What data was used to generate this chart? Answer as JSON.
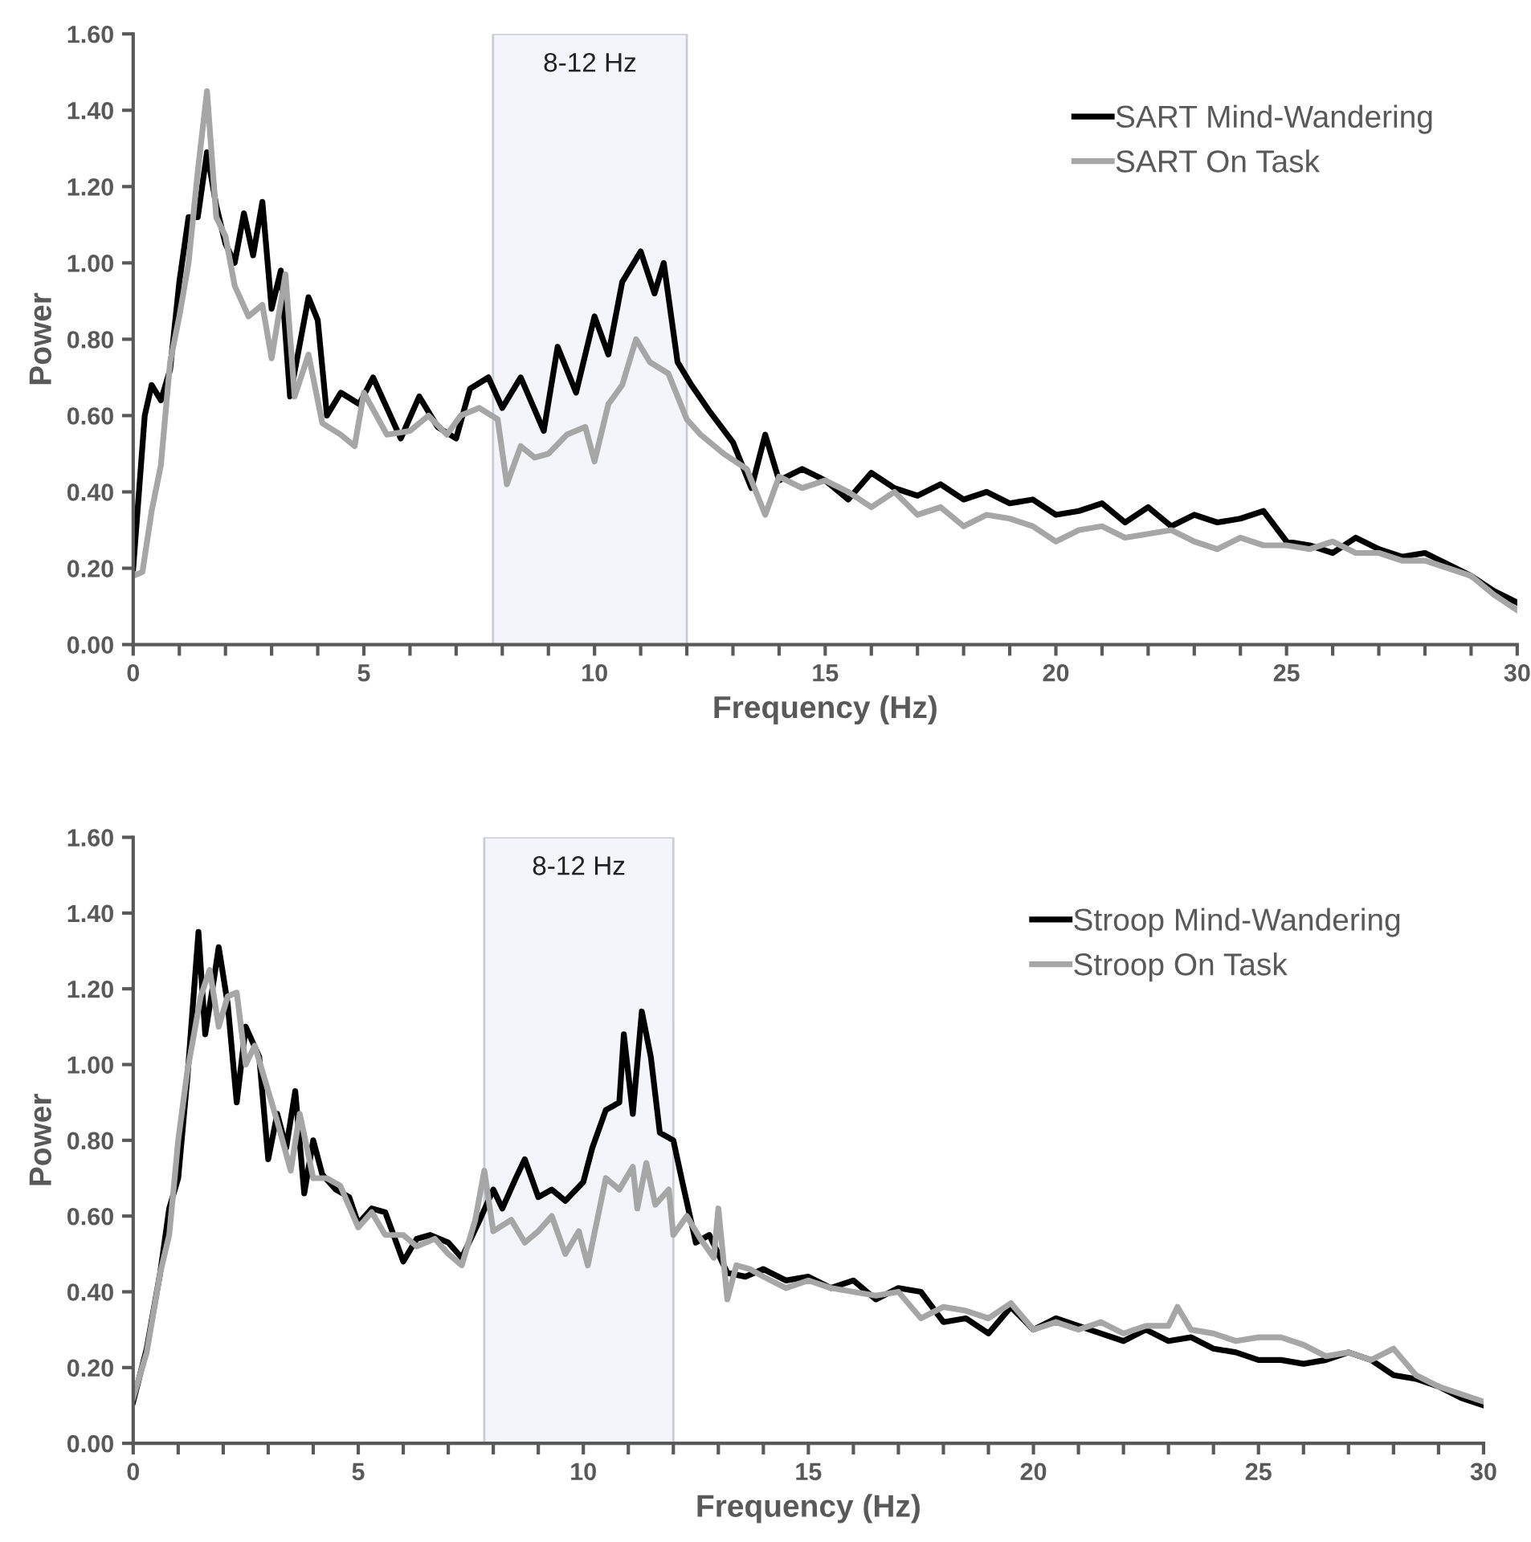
{
  "chart_data": [
    {
      "type": "line",
      "xlabel": "Frequency (Hz)",
      "ylabel": "Power",
      "xlim": [
        0,
        30
      ],
      "ylim": [
        0,
        1.6
      ],
      "xticks": [
        0,
        {
          "value": 1,
          "label": null
        },
        {
          "value": 2,
          "label": null
        },
        {
          "value": 3,
          "label": null
        },
        {
          "value": 4,
          "label": null
        },
        5,
        {
          "value": 6,
          "label": null
        },
        {
          "value": 7,
          "label": null
        },
        {
          "value": 8,
          "label": null
        },
        {
          "value": 9,
          "label": null
        },
        10,
        {
          "value": 11,
          "label": null
        },
        {
          "value": 12,
          "label": null
        },
        {
          "value": 13,
          "label": null
        },
        {
          "value": 14,
          "label": null
        },
        15,
        {
          "value": 16,
          "label": null
        },
        {
          "value": 17,
          "label": null
        },
        {
          "value": 18,
          "label": null
        },
        {
          "value": 19,
          "label": null
        },
        20,
        {
          "value": 21,
          "label": null
        },
        {
          "value": 22,
          "label": null
        },
        {
          "value": 23,
          "label": null
        },
        {
          "value": 24,
          "label": null
        },
        25,
        {
          "value": 26,
          "label": null
        },
        {
          "value": 27,
          "label": null
        },
        {
          "value": 28,
          "label": null
        },
        {
          "value": 29,
          "label": null
        },
        30
      ],
      "yticks": [
        {
          "value": 0,
          "label": "0.00"
        },
        {
          "value": 0.2,
          "label": "0.20"
        },
        {
          "value": 0.4,
          "label": "0.40"
        },
        {
          "value": 0.6,
          "label": "0.60"
        },
        {
          "value": 0.8,
          "label": "0.80"
        },
        {
          "value": 1.0,
          "label": "1.00"
        },
        {
          "value": 1.2,
          "label": "1.20"
        },
        {
          "value": 1.4,
          "label": "1.40"
        },
        {
          "value": 1.6,
          "label": "1.60"
        }
      ],
      "grid": false,
      "legend": "top right",
      "marker": "none",
      "line_style": "solid",
      "bands": [
        {
          "axis": "x",
          "from": 7.8,
          "to": 12,
          "label": "8-12 Hz",
          "color": "#f3f5fa"
        }
      ],
      "series": [
        {
          "name": "SART Mind-Wandering",
          "color": "#000000",
          "x": [
            0,
            0.25,
            0.4,
            0.6,
            0.8,
            1.0,
            1.2,
            1.4,
            1.6,
            1.8,
            2.0,
            2.2,
            2.4,
            2.6,
            2.8,
            3.0,
            3.2,
            3.4,
            3.6,
            3.8,
            4.0,
            4.2,
            4.5,
            4.9,
            5.2,
            5.5,
            5.8,
            6.2,
            6.6,
            7.0,
            7.3,
            7.7,
            8.0,
            8.4,
            8.9,
            9.2,
            9.6,
            10.0,
            10.3,
            10.6,
            11.0,
            11.3,
            11.5,
            11.8,
            12.1,
            12.5,
            13.0,
            13.4,
            13.7,
            14.0,
            14.5,
            15.0,
            15.5,
            16,
            16.5,
            17,
            17.5,
            18,
            18.5,
            19,
            19.5,
            20,
            20.5,
            21,
            21.5,
            22,
            22.5,
            23,
            23.5,
            24,
            24.5,
            25,
            25.5,
            26,
            26.5,
            27,
            27.5,
            28,
            28.5,
            29,
            29.5,
            30
          ],
          "values": [
            0.2,
            0.6,
            0.68,
            0.64,
            0.72,
            0.95,
            1.12,
            1.12,
            1.29,
            1.15,
            1.05,
            1.0,
            1.13,
            1.02,
            1.16,
            0.88,
            0.98,
            0.65,
            0.78,
            0.91,
            0.85,
            0.6,
            0.66,
            0.63,
            0.7,
            0.62,
            0.54,
            0.65,
            0.57,
            0.54,
            0.67,
            0.7,
            0.62,
            0.7,
            0.56,
            0.78,
            0.66,
            0.86,
            0.76,
            0.95,
            1.03,
            0.92,
            1.0,
            0.74,
            0.68,
            0.61,
            0.53,
            0.41,
            0.55,
            0.43,
            0.46,
            0.43,
            0.38,
            0.45,
            0.41,
            0.39,
            0.42,
            0.38,
            0.4,
            0.37,
            0.38,
            0.34,
            0.35,
            0.37,
            0.32,
            0.36,
            0.31,
            0.34,
            0.32,
            0.33,
            0.35,
            0.27,
            0.26,
            0.24,
            0.28,
            0.25,
            0.23,
            0.24,
            0.21,
            0.18,
            0.14,
            0.11
          ]
        },
        {
          "name": "SART On Task",
          "color": "#a6a6a6",
          "x": [
            0,
            0.2,
            0.4,
            0.6,
            0.8,
            1.0,
            1.2,
            1.4,
            1.6,
            1.8,
            2.0,
            2.2,
            2.5,
            2.8,
            3.0,
            3.3,
            3.5,
            3.8,
            4.1,
            4.5,
            4.8,
            5.0,
            5.5,
            6,
            6.4,
            6.8,
            7.1,
            7.5,
            7.9,
            8.1,
            8.4,
            8.7,
            9.0,
            9.4,
            9.8,
            10.0,
            10.3,
            10.6,
            10.9,
            11.2,
            11.6,
            12.0,
            12.3,
            12.8,
            13.3,
            13.7,
            14.0,
            14.5,
            15,
            15.5,
            16,
            16.5,
            17,
            17.5,
            18,
            18.5,
            19,
            19.5,
            20,
            20.5,
            21,
            21.5,
            22,
            22.5,
            23,
            23.5,
            24,
            24.5,
            25,
            25.5,
            26,
            26.5,
            27,
            27.5,
            28,
            28.5,
            29,
            29.5,
            30
          ],
          "values": [
            0.18,
            0.19,
            0.35,
            0.47,
            0.74,
            0.86,
            1.0,
            1.24,
            1.45,
            1.12,
            1.07,
            0.94,
            0.86,
            0.89,
            0.75,
            0.97,
            0.65,
            0.76,
            0.58,
            0.55,
            0.52,
            0.66,
            0.55,
            0.56,
            0.6,
            0.55,
            0.6,
            0.62,
            0.59,
            0.42,
            0.52,
            0.49,
            0.5,
            0.55,
            0.57,
            0.48,
            0.63,
            0.68,
            0.8,
            0.74,
            0.71,
            0.59,
            0.55,
            0.5,
            0.46,
            0.34,
            0.44,
            0.41,
            0.43,
            0.4,
            0.36,
            0.4,
            0.34,
            0.36,
            0.31,
            0.34,
            0.33,
            0.31,
            0.27,
            0.3,
            0.31,
            0.28,
            0.29,
            0.3,
            0.27,
            0.25,
            0.28,
            0.26,
            0.26,
            0.25,
            0.27,
            0.24,
            0.24,
            0.22,
            0.22,
            0.2,
            0.18,
            0.13,
            0.09
          ]
        }
      ]
    },
    {
      "type": "line",
      "xlabel": "Frequency (Hz)",
      "ylabel": "Power",
      "xlim": [
        0,
        30
      ],
      "ylim": [
        0,
        1.6
      ],
      "xticks": [
        0,
        {
          "value": 1,
          "label": null
        },
        {
          "value": 2,
          "label": null
        },
        {
          "value": 3,
          "label": null
        },
        {
          "value": 4,
          "label": null
        },
        5,
        {
          "value": 6,
          "label": null
        },
        {
          "value": 7,
          "label": null
        },
        {
          "value": 8,
          "label": null
        },
        {
          "value": 9,
          "label": null
        },
        10,
        {
          "value": 11,
          "label": null
        },
        {
          "value": 12,
          "label": null
        },
        {
          "value": 13,
          "label": null
        },
        {
          "value": 14,
          "label": null
        },
        15,
        {
          "value": 16,
          "label": null
        },
        {
          "value": 17,
          "label": null
        },
        {
          "value": 18,
          "label": null
        },
        {
          "value": 19,
          "label": null
        },
        20,
        {
          "value": 21,
          "label": null
        },
        {
          "value": 22,
          "label": null
        },
        {
          "value": 23,
          "label": null
        },
        {
          "value": 24,
          "label": null
        },
        25,
        {
          "value": 26,
          "label": null
        },
        {
          "value": 27,
          "label": null
        },
        {
          "value": 28,
          "label": null
        },
        {
          "value": 29,
          "label": null
        },
        30
      ],
      "yticks": [
        {
          "value": 0,
          "label": "0.00"
        },
        {
          "value": 0.2,
          "label": "0.20"
        },
        {
          "value": 0.4,
          "label": "0.40"
        },
        {
          "value": 0.6,
          "label": "0.60"
        },
        {
          "value": 0.8,
          "label": "0.80"
        },
        {
          "value": 1.0,
          "label": "1.00"
        },
        {
          "value": 1.2,
          "label": "1.20"
        },
        {
          "value": 1.4,
          "label": "1.40"
        },
        {
          "value": 1.6,
          "label": "1.60"
        }
      ],
      "grid": false,
      "legend": "top right",
      "marker": "none",
      "line_style": "solid",
      "bands": [
        {
          "axis": "x",
          "from": 7.8,
          "to": 12,
          "label": "8-12 Hz",
          "color": "#f3f5fa"
        }
      ],
      "series": [
        {
          "name": "Stroop Mind-Wandering",
          "color": "#000000",
          "x": [
            0,
            0.3,
            0.6,
            0.8,
            1.0,
            1.2,
            1.45,
            1.6,
            1.8,
            1.9,
            2.1,
            2.3,
            2.5,
            2.8,
            3.0,
            3.2,
            3.4,
            3.6,
            3.8,
            4.0,
            4.2,
            4.5,
            4.8,
            5.0,
            5.3,
            5.6,
            6.0,
            6.3,
            6.6,
            7.0,
            7.3,
            7.7,
            8.0,
            8.2,
            8.5,
            8.7,
            9.0,
            9.3,
            9.6,
            10.0,
            10.2,
            10.5,
            10.8,
            10.9,
            11.1,
            11.3,
            11.5,
            11.7,
            12.0,
            12.2,
            12.5,
            12.8,
            13.2,
            13.6,
            14.0,
            14.5,
            15,
            15.5,
            16,
            16.5,
            17,
            17.5,
            18,
            18.5,
            19,
            19.5,
            20,
            20.5,
            21,
            21.5,
            22,
            22.5,
            23,
            23.5,
            24,
            24.5,
            25,
            25.5,
            26,
            26.5,
            27,
            27.5,
            28,
            28.5,
            29,
            29.5,
            30
          ],
          "values": [
            0.11,
            0.25,
            0.45,
            0.62,
            0.7,
            0.96,
            1.35,
            1.08,
            1.23,
            1.31,
            1.16,
            0.9,
            1.1,
            1.02,
            0.75,
            0.87,
            0.78,
            0.93,
            0.66,
            0.8,
            0.71,
            0.67,
            0.65,
            0.58,
            0.62,
            0.61,
            0.48,
            0.54,
            0.55,
            0.53,
            0.49,
            0.59,
            0.67,
            0.62,
            0.7,
            0.75,
            0.65,
            0.67,
            0.64,
            0.69,
            0.78,
            0.88,
            0.9,
            1.08,
            0.87,
            1.14,
            1.02,
            0.82,
            0.8,
            0.69,
            0.53,
            0.55,
            0.45,
            0.44,
            0.46,
            0.43,
            0.44,
            0.41,
            0.43,
            0.38,
            0.41,
            0.4,
            0.32,
            0.33,
            0.29,
            0.36,
            0.3,
            0.33,
            0.31,
            0.29,
            0.27,
            0.3,
            0.27,
            0.28,
            0.25,
            0.24,
            0.22,
            0.22,
            0.21,
            0.22,
            0.24,
            0.22,
            0.18,
            0.17,
            0.15,
            0.12,
            0.1
          ]
        },
        {
          "name": "Stroop On Task",
          "color": "#a6a6a6",
          "x": [
            0,
            0.3,
            0.6,
            0.8,
            1.0,
            1.2,
            1.5,
            1.7,
            1.9,
            2.1,
            2.3,
            2.5,
            2.7,
            3.0,
            3.2,
            3.5,
            3.7,
            4.0,
            4.3,
            4.6,
            5.0,
            5.3,
            5.6,
            6.0,
            6.3,
            6.7,
            7.0,
            7.3,
            7.6,
            7.8,
            8.0,
            8.4,
            8.7,
            9.0,
            9.3,
            9.6,
            9.9,
            10.1,
            10.5,
            10.8,
            11.1,
            11.2,
            11.4,
            11.6,
            11.9,
            12.0,
            12.3,
            12.6,
            12.9,
            13.0,
            13.2,
            13.4,
            13.7,
            14,
            14.5,
            15,
            15.5,
            16,
            16.5,
            17,
            17.5,
            18,
            18.5,
            19,
            19.5,
            20,
            20.5,
            21,
            21.5,
            22,
            22.5,
            23,
            23.2,
            23.5,
            24,
            24.5,
            25,
            25.5,
            26,
            26.5,
            27,
            27.5,
            28,
            28.5,
            29,
            29.5,
            30
          ],
          "values": [
            0.12,
            0.24,
            0.45,
            0.55,
            0.8,
            0.98,
            1.18,
            1.25,
            1.1,
            1.18,
            1.19,
            1.0,
            1.05,
            0.93,
            0.85,
            0.72,
            0.87,
            0.7,
            0.7,
            0.68,
            0.57,
            0.61,
            0.55,
            0.55,
            0.52,
            0.54,
            0.5,
            0.47,
            0.59,
            0.72,
            0.56,
            0.59,
            0.53,
            0.56,
            0.6,
            0.5,
            0.56,
            0.47,
            0.7,
            0.67,
            0.73,
            0.62,
            0.74,
            0.63,
            0.67,
            0.55,
            0.6,
            0.54,
            0.49,
            0.62,
            0.38,
            0.47,
            0.46,
            0.44,
            0.41,
            0.43,
            0.41,
            0.4,
            0.39,
            0.4,
            0.33,
            0.36,
            0.35,
            0.33,
            0.37,
            0.3,
            0.32,
            0.3,
            0.32,
            0.29,
            0.31,
            0.31,
            0.36,
            0.3,
            0.29,
            0.27,
            0.28,
            0.28,
            0.26,
            0.23,
            0.24,
            0.22,
            0.25,
            0.18,
            0.15,
            0.13,
            0.11
          ]
        }
      ]
    }
  ]
}
